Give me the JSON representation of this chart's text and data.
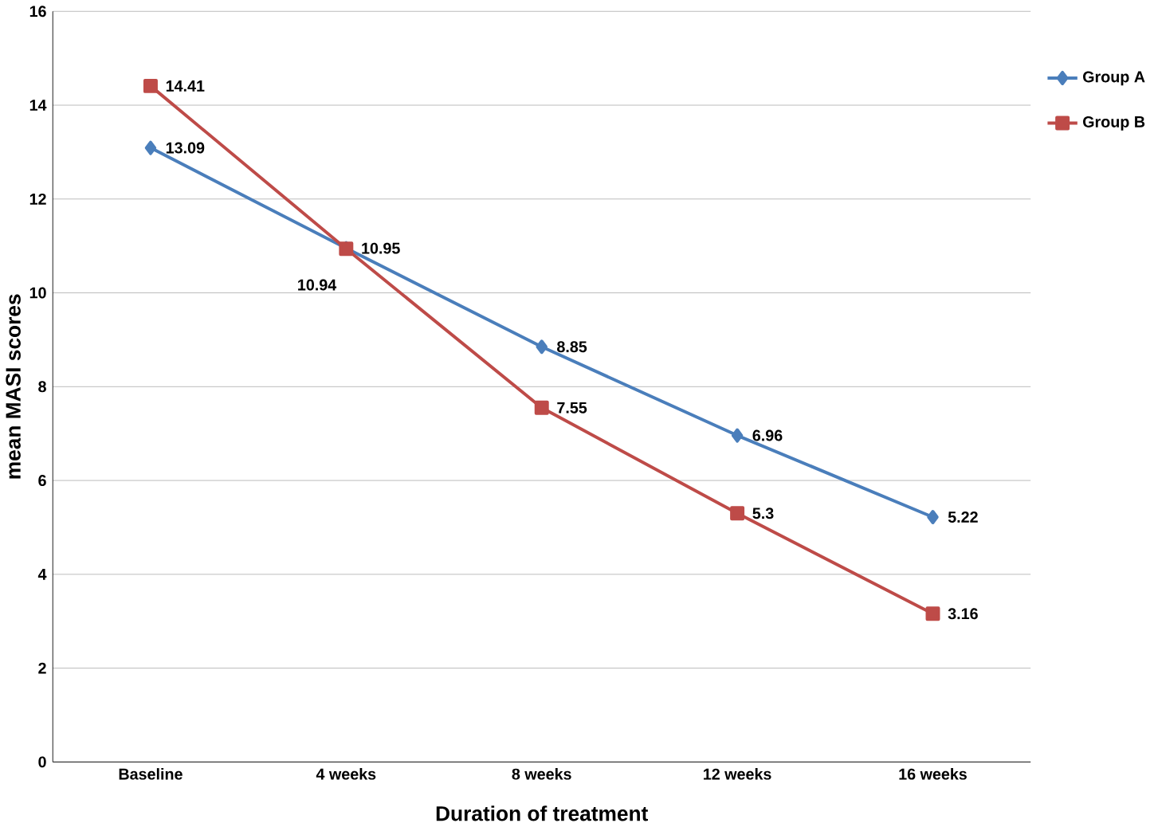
{
  "chart_data": {
    "type": "line",
    "xlabel": "Duration of treatment",
    "ylabel": "mean MASI scores",
    "categories": [
      "Baseline",
      "4 weeks",
      "8 weeks",
      "12 weeks",
      "16 weeks"
    ],
    "series": [
      {
        "name": "Group A",
        "color": "#4a7ebb",
        "marker": "diamond",
        "values": [
          13.09,
          10.95,
          8.85,
          6.96,
          5.22
        ]
      },
      {
        "name": "Group B",
        "color": "#be4b48",
        "marker": "square",
        "values": [
          14.41,
          10.94,
          7.55,
          5.3,
          3.16
        ]
      }
    ],
    "ylim": [
      0,
      16
    ],
    "yticks": [
      0,
      2,
      4,
      6,
      8,
      10,
      12,
      14,
      16
    ],
    "grid": "y",
    "legend": "top right",
    "data_labels": true
  }
}
